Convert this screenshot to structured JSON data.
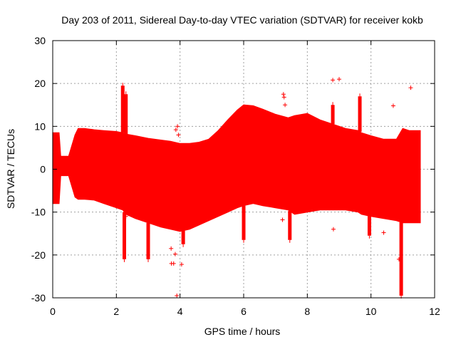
{
  "chart_data": {
    "type": "scatter",
    "title": "Day 203 of 2011, Sidereal Day-to-day VTEC variation (SDTVAR) for receiver kokb",
    "xlabel": "GPS time / hours",
    "ylabel": "SDTVAR / TECUs",
    "xlim": [
      0,
      12
    ],
    "ylim": [
      -30,
      30
    ],
    "xticks": [
      0,
      2,
      4,
      6,
      8,
      10,
      12
    ],
    "yticks": [
      -30,
      -20,
      -10,
      0,
      10,
      20,
      30
    ],
    "grid": true,
    "color": "#ff0000",
    "series": [
      {
        "name": "SDTVAR",
        "upper_envelope": {
          "x": [
            0.0,
            0.2,
            0.25,
            0.5,
            0.7,
            0.8,
            1.0,
            1.3,
            1.6,
            2.0,
            2.2,
            2.3,
            2.6,
            3.0,
            3.4,
            3.7,
            4.0,
            4.3,
            4.6,
            4.9,
            5.2,
            5.5,
            5.8,
            6.0,
            6.3,
            6.6,
            7.0,
            7.4,
            7.6,
            8.0,
            8.4,
            8.8,
            9.2,
            9.6,
            9.7,
            10.0,
            10.4,
            10.8,
            11.0,
            11.2,
            11.55
          ],
          "y": [
            8.5,
            8.5,
            3.0,
            3.0,
            8.0,
            9.5,
            9.5,
            9.2,
            9.0,
            8.8,
            8.5,
            8.2,
            7.8,
            7.2,
            6.8,
            6.5,
            6.0,
            6.0,
            6.3,
            7.0,
            9.0,
            11.5,
            13.8,
            15.0,
            14.8,
            14.0,
            12.8,
            12.0,
            12.5,
            13.0,
            11.5,
            10.5,
            9.5,
            9.0,
            8.5,
            7.8,
            7.0,
            7.0,
            9.5,
            9.0,
            9.0
          ],
          "spikes": [
            {
              "x": 2.2,
              "y": 19.5
            },
            {
              "x": 2.3,
              "y": 17.5
            },
            {
              "x": 9.65,
              "y": 17.0
            },
            {
              "x": 8.8,
              "y": 15.0
            }
          ]
        },
        "lower_envelope": {
          "x": [
            0.0,
            0.2,
            0.25,
            0.5,
            0.7,
            0.8,
            1.0,
            1.3,
            1.6,
            2.0,
            2.2,
            2.3,
            2.6,
            3.0,
            3.4,
            3.7,
            4.0,
            4.3,
            4.6,
            4.9,
            5.2,
            5.5,
            5.8,
            6.0,
            6.3,
            6.6,
            7.0,
            7.4,
            7.6,
            8.0,
            8.4,
            8.8,
            9.2,
            9.6,
            9.7,
            10.0,
            10.4,
            10.8,
            11.0,
            11.2,
            11.55
          ],
          "y": [
            -8.0,
            -8.0,
            -1.5,
            -1.5,
            -6.5,
            -7.0,
            -7.0,
            -7.2,
            -8.0,
            -9.0,
            -9.5,
            -10.5,
            -11.5,
            -12.5,
            -13.5,
            -14.0,
            -14.5,
            -14.0,
            -13.0,
            -12.0,
            -11.0,
            -10.0,
            -9.0,
            -8.5,
            -8.0,
            -8.5,
            -9.0,
            -9.5,
            -10.5,
            -10.0,
            -9.5,
            -9.5,
            -9.5,
            -10.0,
            -10.5,
            -11.0,
            -11.5,
            -12.0,
            -12.5,
            -12.5,
            -12.5
          ],
          "spikes": [
            {
              "x": 2.25,
              "y": -21.0
            },
            {
              "x": 3.0,
              "y": -21.0
            },
            {
              "x": 4.1,
              "y": -17.5
            },
            {
              "x": 6.0,
              "y": -16.5
            },
            {
              "x": 7.45,
              "y": -16.5
            },
            {
              "x": 9.95,
              "y": -15.5
            },
            {
              "x": 10.95,
              "y": -29.5
            }
          ]
        },
        "outliers": [
          {
            "x": 2.3,
            "y": -11.0
          },
          {
            "x": 3.73,
            "y": -22.0
          },
          {
            "x": 3.8,
            "y": -22.0
          },
          {
            "x": 3.72,
            "y": -18.5
          },
          {
            "x": 3.85,
            "y": -19.8
          },
          {
            "x": 3.87,
            "y": 9.2
          },
          {
            "x": 3.92,
            "y": 10.0
          },
          {
            "x": 3.95,
            "y": 8.0
          },
          {
            "x": 3.9,
            "y": -29.5
          },
          {
            "x": 4.05,
            "y": -22.2
          },
          {
            "x": 7.25,
            "y": 17.5
          },
          {
            "x": 7.27,
            "y": 16.8
          },
          {
            "x": 7.3,
            "y": 15.0
          },
          {
            "x": 7.22,
            "y": -11.8
          },
          {
            "x": 8.8,
            "y": 20.8
          },
          {
            "x": 9.0,
            "y": 21.0
          },
          {
            "x": 8.82,
            "y": -14.0
          },
          {
            "x": 10.4,
            "y": -14.8
          },
          {
            "x": 10.7,
            "y": 14.8
          },
          {
            "x": 11.25,
            "y": 19.0
          },
          {
            "x": 10.88,
            "y": -21.0
          }
        ]
      }
    ]
  }
}
